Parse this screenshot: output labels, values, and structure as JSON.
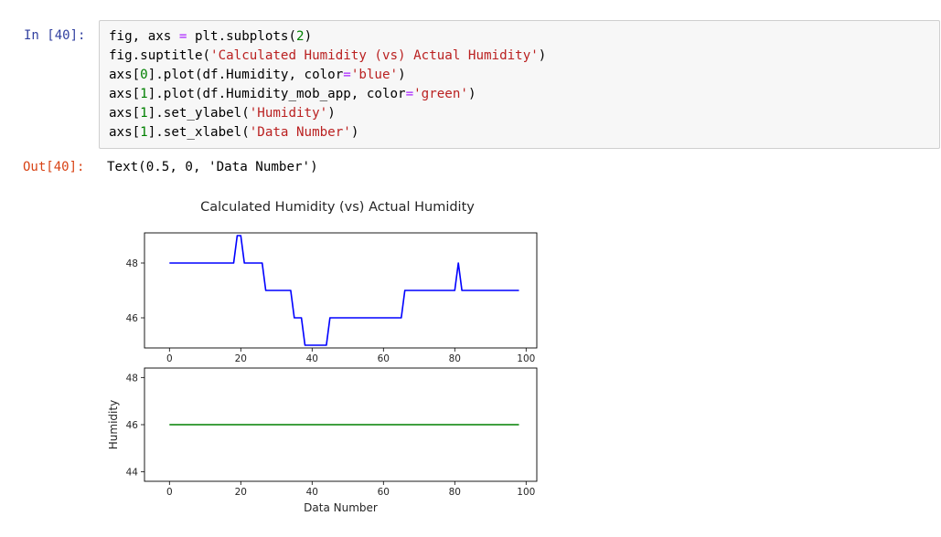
{
  "input_prompt": "In [40]:",
  "code_lines": [
    [
      {
        "t": "fig, axs "
      },
      {
        "t": "=",
        "c": "o"
      },
      {
        "t": " plt.subplots("
      },
      {
        "t": "2",
        "c": "n"
      },
      {
        "t": ")"
      }
    ],
    [
      {
        "t": "fig.suptitle("
      },
      {
        "t": "'Calculated Humidity (vs) Actual Humidity'",
        "c": "s"
      },
      {
        "t": ")"
      }
    ],
    [
      {
        "t": "axs["
      },
      {
        "t": "0",
        "c": "n"
      },
      {
        "t": "].plot(df.Humidity, color"
      },
      {
        "t": "=",
        "c": "o"
      },
      {
        "t": "'blue'",
        "c": "s"
      },
      {
        "t": ")"
      }
    ],
    [
      {
        "t": "axs["
      },
      {
        "t": "1",
        "c": "n"
      },
      {
        "t": "].plot(df.Humidity_mob_app, color"
      },
      {
        "t": "=",
        "c": "o"
      },
      {
        "t": "'green'",
        "c": "s"
      },
      {
        "t": ")"
      }
    ],
    [
      {
        "t": "axs["
      },
      {
        "t": "1",
        "c": "n"
      },
      {
        "t": "].set_ylabel("
      },
      {
        "t": "'Humidity'",
        "c": "s"
      },
      {
        "t": ")"
      }
    ],
    [
      {
        "t": "axs["
      },
      {
        "t": "1",
        "c": "n"
      },
      {
        "t": "].set_xlabel("
      },
      {
        "t": "'Data Number'",
        "c": "s"
      },
      {
        "t": ")"
      }
    ]
  ],
  "output_prompt": "Out[40]:",
  "output_text": "Text(0.5, 0, 'Data Number')",
  "colors": {
    "in_prompt": "#303f9f",
    "out_prompt": "#d84315",
    "string": "#ba2121",
    "number": "#008000",
    "operator": "#aa22ff"
  },
  "chart_data": {
    "type": "line",
    "title": "Calculated Humidity (vs) Actual Humidity",
    "subplots": [
      {
        "xlabel": "",
        "ylabel": "",
        "xlim": [
          -7,
          103
        ],
        "ylim": [
          44.9,
          49.1
        ],
        "xticks": [
          0,
          20,
          40,
          60,
          80,
          100
        ],
        "yticks": [
          46,
          48
        ],
        "series": [
          {
            "color": "#0000ff",
            "x": [
              0,
              18,
              19,
              20,
              21,
              26,
              27,
              34,
              35,
              37,
              38,
              44,
              45,
              65,
              66,
              80,
              81,
              82,
              98
            ],
            "y": [
              48,
              48,
              49,
              49,
              48,
              48,
              47,
              47,
              46,
              46,
              45,
              45,
              46,
              46,
              47,
              47,
              48,
              47,
              47
            ]
          }
        ]
      },
      {
        "xlabel": "Data Number",
        "ylabel": "Humidity",
        "xlim": [
          -7,
          103
        ],
        "ylim": [
          43.6,
          48.4
        ],
        "xticks": [
          0,
          20,
          40,
          60,
          80,
          100
        ],
        "yticks": [
          44,
          46,
          48
        ],
        "series": [
          {
            "color": "#008000",
            "x": [
              0,
              98
            ],
            "y": [
              46,
              46
            ]
          }
        ]
      }
    ]
  }
}
